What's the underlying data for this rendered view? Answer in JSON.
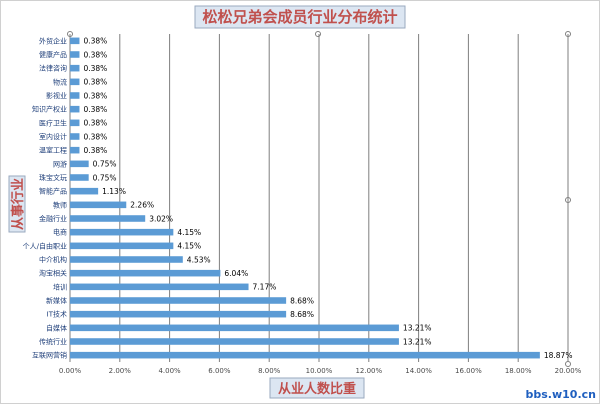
{
  "colors": {
    "bar": "#5b9bd5",
    "title": "#c0504d",
    "watermark": "#1f5fbf"
  },
  "chart_data": {
    "type": "bar",
    "orientation": "horizontal",
    "title": "松松兄弟会成员行业分布统计",
    "xlabel": "从业人数比重",
    "ylabel": "从事行业",
    "xlim": [
      0,
      20
    ],
    "x_ticks": [
      "0.00%",
      "2.00%",
      "4.00%",
      "6.00%",
      "8.00%",
      "10.00%",
      "12.00%",
      "14.00%",
      "16.00%",
      "18.00%",
      "20.00%"
    ],
    "grid": "vertical",
    "legend": "none",
    "categories": [
      "互联网营销",
      "传统行业",
      "自媒体",
      "IT技术",
      "新媒体",
      "培训",
      "淘宝相关",
      "中介机构",
      "个人/自由职业",
      "电商",
      "金融行业",
      "教师",
      "智能产品",
      "珠宝文玩",
      "网游",
      "温室工程",
      "室内设计",
      "医疗卫生",
      "知识产权业",
      "影视业",
      "物流",
      "法律咨询",
      "健康产品",
      "外贸企业"
    ],
    "values": [
      18.87,
      13.21,
      13.21,
      8.68,
      8.68,
      7.17,
      6.04,
      4.53,
      4.15,
      4.15,
      3.02,
      2.26,
      1.13,
      0.75,
      0.75,
      0.38,
      0.38,
      0.38,
      0.38,
      0.38,
      0.38,
      0.38,
      0.38,
      0.38
    ],
    "value_labels": [
      "18.87%",
      "13.21%",
      "13.21%",
      "8.68%",
      "8.68%",
      "7.17%",
      "6.04%",
      "4.53%",
      "4.15%",
      "4.15%",
      "3.02%",
      "2.26%",
      "1.13%",
      "0.75%",
      "0.75%",
      "0.38%",
      "0.38%",
      "0.38%",
      "0.38%",
      "0.38%",
      "0.38%",
      "0.38%",
      "0.38%",
      "0.38%"
    ]
  },
  "watermark": "bbs.w10.cn"
}
